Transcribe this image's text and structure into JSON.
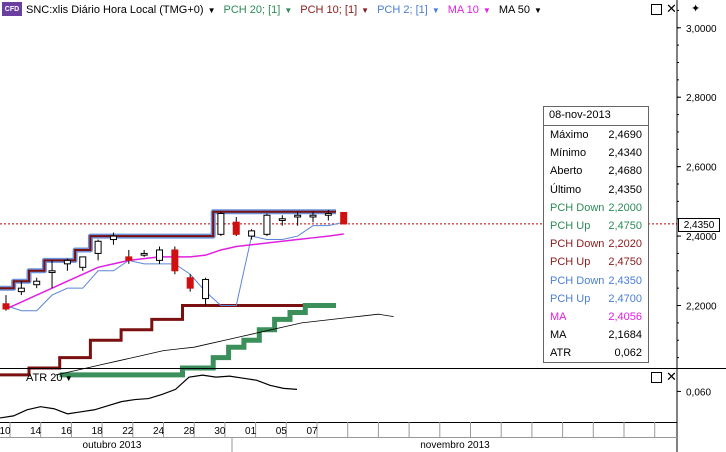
{
  "header": {
    "badge": "CFD",
    "symbol": "SNC:xlis Diário Hora Local (TMG+0)",
    "indicators": [
      {
        "label": "PCH 20; [1]",
        "color": "#2e8b57"
      },
      {
        "label": "PCH 10; [1]",
        "color": "#8b1a1a"
      },
      {
        "label": "PCH 2; [1]",
        "color": "#4a7fd4"
      },
      {
        "label": "MA 10",
        "color": "#e020e0"
      },
      {
        "label": "MA 50",
        "color": "#000000"
      }
    ]
  },
  "colors": {
    "pch20": "#3a8f5a",
    "pch10": "#7a1010",
    "pch2": "#5b86d6",
    "ma10": "#e020e0",
    "ma50": "#000000",
    "up": "#ffffff",
    "down": "#d01010",
    "last_line": "#c00000"
  },
  "last_price": "2,4350",
  "info_box": {
    "date": "08-nov-2013",
    "rows": [
      {
        "label": "Máximo",
        "value": "2,4690",
        "color": "#000000"
      },
      {
        "label": "Mínimo",
        "value": "2,4340",
        "color": "#000000"
      },
      {
        "label": "Aberto",
        "value": "2,4680",
        "color": "#000000"
      },
      {
        "label": "Último",
        "value": "2,4350",
        "color": "#000000"
      },
      {
        "label": "PCH Down",
        "value": "2,2000",
        "color": "#2e8b57"
      },
      {
        "label": "PCH Up",
        "value": "2,4750",
        "color": "#2e8b57"
      },
      {
        "label": "PCH Down",
        "value": "2,2020",
        "color": "#8b1a1a"
      },
      {
        "label": "PCH Up",
        "value": "2,4750",
        "color": "#8b1a1a"
      },
      {
        "label": "PCH Down",
        "value": "2,4350",
        "color": "#4a7fd4"
      },
      {
        "label": "PCH Up",
        "value": "2,4700",
        "color": "#4a7fd4"
      },
      {
        "label": "MA",
        "value": "2,4056",
        "color": "#e020e0"
      },
      {
        "label": "MA",
        "value": "2,1684",
        "color": "#000000"
      },
      {
        "label": "ATR",
        "value": "0,062",
        "color": "#000000"
      }
    ]
  },
  "atr_panel": {
    "label": "ATR 20",
    "tick": "0,060"
  },
  "chart_data": {
    "type": "candlestick",
    "y_ticks": [
      "3,0000",
      "2,8000",
      "2,6000",
      "2,4000",
      "2,2000"
    ],
    "y_tick_values": [
      3.0,
      2.8,
      2.6,
      2.4,
      2.2
    ],
    "ylim": [
      2.02,
      3.08
    ],
    "x_day_labels": [
      "10",
      "14",
      "16",
      "18",
      "22",
      "24",
      "28",
      "30",
      "01",
      "05",
      "07"
    ],
    "x_month_labels": [
      "outubro 2013",
      "novembro 2013"
    ],
    "candles": [
      {
        "o": 2.205,
        "h": 2.23,
        "l": 2.185,
        "c": 2.19
      },
      {
        "o": 2.24,
        "h": 2.27,
        "l": 2.23,
        "c": 2.25
      },
      {
        "o": 2.26,
        "h": 2.28,
        "l": 2.25,
        "c": 2.27
      },
      {
        "o": 2.295,
        "h": 2.33,
        "l": 2.25,
        "c": 2.3
      },
      {
        "o": 2.32,
        "h": 2.335,
        "l": 2.3,
        "c": 2.33
      },
      {
        "o": 2.31,
        "h": 2.34,
        "l": 2.3,
        "c": 2.34
      },
      {
        "o": 2.35,
        "h": 2.39,
        "l": 2.33,
        "c": 2.385
      },
      {
        "o": 2.39,
        "h": 2.41,
        "l": 2.375,
        "c": 2.4
      },
      {
        "o": 2.34,
        "h": 2.36,
        "l": 2.32,
        "c": 2.33
      },
      {
        "o": 2.345,
        "h": 2.36,
        "l": 2.34,
        "c": 2.35
      },
      {
        "o": 2.33,
        "h": 2.37,
        "l": 2.32,
        "c": 2.36
      },
      {
        "o": 2.36,
        "h": 2.37,
        "l": 2.29,
        "c": 2.3
      },
      {
        "o": 2.28,
        "h": 2.29,
        "l": 2.24,
        "c": 2.25
      },
      {
        "o": 2.22,
        "h": 2.28,
        "l": 2.2,
        "c": 2.275
      },
      {
        "o": 2.405,
        "h": 2.47,
        "l": 2.4,
        "c": 2.465
      },
      {
        "o": 2.44,
        "h": 2.455,
        "l": 2.4,
        "c": 2.405
      },
      {
        "o": 2.4,
        "h": 2.42,
        "l": 2.39,
        "c": 2.415
      },
      {
        "o": 2.405,
        "h": 2.465,
        "l": 2.4,
        "c": 2.46
      },
      {
        "o": 2.445,
        "h": 2.46,
        "l": 2.43,
        "c": 2.45
      },
      {
        "o": 2.455,
        "h": 2.47,
        "l": 2.43,
        "c": 2.46
      },
      {
        "o": 2.455,
        "h": 2.47,
        "l": 2.44,
        "c": 2.46
      },
      {
        "o": 2.46,
        "h": 2.475,
        "l": 2.445,
        "c": 2.465
      },
      {
        "o": 2.468,
        "h": 2.469,
        "l": 2.434,
        "c": 2.435
      }
    ],
    "atr": [
      0.034,
      0.036,
      0.042,
      0.045,
      0.043,
      0.038,
      0.04,
      0.042,
      0.046,
      0.05,
      0.052,
      0.053,
      0.057,
      0.062,
      0.074,
      0.076,
      0.074,
      0.075,
      0.073,
      0.071,
      0.066,
      0.063,
      0.062
    ],
    "atr_ylim": [
      0.03,
      0.082
    ]
  }
}
